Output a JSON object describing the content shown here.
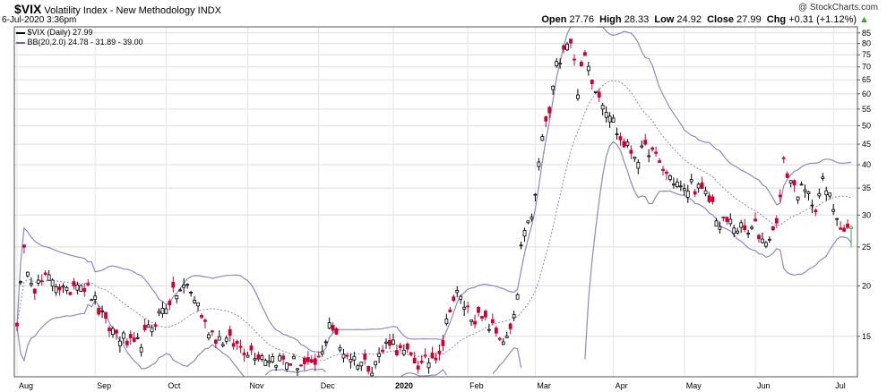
{
  "header": {
    "symbol": "$VIX",
    "name": "Volatility Index - New Methodology",
    "exchange": "INDX",
    "date": "6-Jul-2020 3:36pm",
    "watermark": "@ StockCharts.com",
    "open_label": "Open",
    "open": "27.76",
    "high_label": "High",
    "high": "28.33",
    "low_label": "Low",
    "low": "24.92",
    "close_label": "Close",
    "close": "27.99",
    "chg_label": "Chg",
    "chg": "+0.31 (+1.12%)"
  },
  "legend": {
    "price": "$VIX (Daily) 27.99",
    "bb": "BB(20,2.0) 24.78 - 31.89 - 39.00"
  },
  "colors": {
    "up": "#000000",
    "down": "#cc0033",
    "band": "#8888cc",
    "mid": "#8888bb",
    "last": "#33aa33"
  },
  "chart_data": {
    "type": "candlestick",
    "y_scale": "log",
    "ylim": [
      11.9,
      88
    ],
    "y_ticks": [
      15,
      20,
      25,
      30,
      35,
      40,
      45,
      50,
      55,
      60,
      65,
      70,
      75,
      80,
      85
    ],
    "x_labels": [
      {
        "label": "Aug",
        "pos": 0
      },
      {
        "label": "Sep",
        "pos": 22
      },
      {
        "label": "Oct",
        "pos": 42
      },
      {
        "label": "Nov",
        "pos": 65
      },
      {
        "label": "Dec",
        "pos": 85
      },
      {
        "label": "2020",
        "pos": 106
      },
      {
        "label": "Feb",
        "pos": 127
      },
      {
        "label": "Mar",
        "pos": 146
      },
      {
        "label": "Apr",
        "pos": 168
      },
      {
        "label": "May",
        "pos": 188
      },
      {
        "label": "Jun",
        "pos": 208
      },
      {
        "label": "Jul",
        "pos": 230
      }
    ],
    "n_days": 236,
    "series": [
      {
        "name": "$VIX (Daily)",
        "anchors": [
          [
            0,
            16.5
          ],
          [
            2,
            24
          ],
          [
            5,
            20
          ],
          [
            10,
            21
          ],
          [
            14,
            19
          ],
          [
            17,
            21
          ],
          [
            21,
            19
          ],
          [
            25,
            16
          ],
          [
            29,
            15
          ],
          [
            33,
            14
          ],
          [
            36,
            15
          ],
          [
            40,
            17
          ],
          [
            44,
            19
          ],
          [
            48,
            20
          ],
          [
            51,
            18
          ],
          [
            53,
            16
          ],
          [
            56,
            15
          ],
          [
            60,
            14.5
          ],
          [
            64,
            14
          ],
          [
            70,
            13.4
          ],
          [
            76,
            13
          ],
          [
            80,
            12.8
          ],
          [
            83,
            12.4
          ],
          [
            86,
            13.5
          ],
          [
            88,
            16.5
          ],
          [
            91,
            14
          ],
          [
            95,
            13.2
          ],
          [
            100,
            12.7
          ],
          [
            103,
            13.8
          ],
          [
            105,
            14.8
          ],
          [
            108,
            13.7
          ],
          [
            111,
            13.3
          ],
          [
            114,
            12.6
          ],
          [
            118,
            13.6
          ],
          [
            120,
            14.5
          ],
          [
            122,
            18
          ],
          [
            124,
            19
          ],
          [
            128,
            17
          ],
          [
            133,
            16
          ],
          [
            136,
            15
          ],
          [
            138,
            14.6
          ],
          [
            140,
            16.4
          ],
          [
            141,
            19
          ],
          [
            142,
            25
          ],
          [
            144,
            28
          ],
          [
            146,
            33
          ],
          [
            147,
            40
          ],
          [
            148,
            47
          ],
          [
            150,
            54
          ],
          [
            152,
            70
          ],
          [
            154,
            80
          ],
          [
            156,
            82
          ],
          [
            158,
            62
          ],
          [
            160,
            74
          ],
          [
            162,
            66
          ],
          [
            164,
            60
          ],
          [
            167,
            54
          ],
          [
            170,
            46
          ],
          [
            172,
            44
          ],
          [
            175,
            42
          ],
          [
            178,
            44
          ],
          [
            181,
            40
          ],
          [
            183,
            38
          ],
          [
            186,
            36
          ],
          [
            188,
            34
          ],
          [
            190,
            36
          ],
          [
            193,
            34
          ],
          [
            196,
            32
          ],
          [
            198,
            28
          ],
          [
            200,
            29
          ],
          [
            203,
            28
          ],
          [
            206,
            27
          ],
          [
            208,
            28
          ],
          [
            210,
            26
          ],
          [
            213,
            27
          ],
          [
            215,
            33
          ],
          [
            216,
            40
          ],
          [
            219,
            35
          ],
          [
            222,
            34
          ],
          [
            225,
            32
          ],
          [
            227,
            36
          ],
          [
            229,
            33
          ],
          [
            231,
            30
          ],
          [
            233,
            27.7
          ],
          [
            235,
            27.99
          ]
        ]
      },
      {
        "name": "BB(20,2.0)",
        "upper": 39.0,
        "mid": 31.89,
        "lower": 24.78
      }
    ],
    "last": {
      "open": 27.76,
      "high": 28.33,
      "low": 24.92,
      "close": 27.99
    }
  }
}
